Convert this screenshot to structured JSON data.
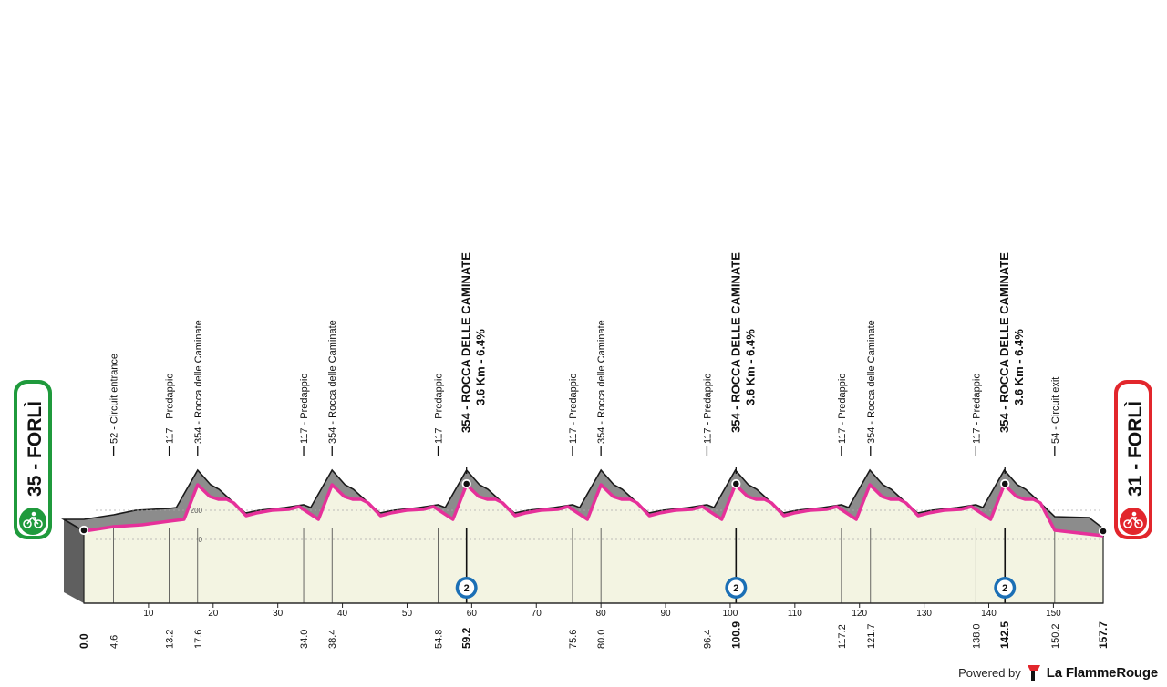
{
  "stage": {
    "start": {
      "altitude": "35",
      "name": "FORLÌ"
    },
    "finish": {
      "altitude": "31",
      "name": "FORLÌ"
    },
    "total_km": "157.7"
  },
  "altitude_scale": [
    "200",
    "0"
  ],
  "km_axis": [
    "10",
    "20",
    "30",
    "40",
    "50",
    "60",
    "70",
    "80",
    "90",
    "100",
    "110",
    "120",
    "130",
    "140",
    "150"
  ],
  "km_points": [
    {
      "km": 0.0,
      "label": "0.0",
      "major": true
    },
    {
      "km": 4.6,
      "label": "4.6"
    },
    {
      "km": 13.2,
      "label": "13.2"
    },
    {
      "km": 17.6,
      "label": "17.6"
    },
    {
      "km": 34.0,
      "label": "34.0"
    },
    {
      "km": 38.4,
      "label": "38.4"
    },
    {
      "km": 54.8,
      "label": "54.8"
    },
    {
      "km": 59.2,
      "label": "59.2",
      "major": true
    },
    {
      "km": 75.6,
      "label": "75.6"
    },
    {
      "km": 80.0,
      "label": "80.0"
    },
    {
      "km": 96.4,
      "label": "96.4"
    },
    {
      "km": 100.9,
      "label": "100.9",
      "major": true
    },
    {
      "km": 117.2,
      "label": "117.2"
    },
    {
      "km": 121.7,
      "label": "121.7"
    },
    {
      "km": 138.0,
      "label": "138.0"
    },
    {
      "km": 142.5,
      "label": "142.5",
      "major": true
    },
    {
      "km": 150.2,
      "label": "150.2"
    },
    {
      "km": 157.7,
      "label": "157.7",
      "major": true
    }
  ],
  "waypoints": [
    {
      "km": 4.6,
      "text": "52 - Circuit entrance"
    },
    {
      "km": 13.2,
      "text": "117 - Predappio"
    },
    {
      "km": 17.6,
      "text": "354 - Rocca delle Caminate"
    },
    {
      "km": 34.0,
      "text": "117 - Predappio"
    },
    {
      "km": 38.4,
      "text": "354 - Rocca delle Caminate"
    },
    {
      "km": 54.8,
      "text": "117 - Predappio"
    },
    {
      "km": 59.2,
      "text": "354 - ROCCA DELLE CAMINATE",
      "sub": "3.6 Km - 6.4%",
      "major": true
    },
    {
      "km": 75.6,
      "text": "117 - Predappio"
    },
    {
      "km": 80.0,
      "text": "354 - Rocca delle Caminate"
    },
    {
      "km": 96.4,
      "text": "117 - Predappio"
    },
    {
      "km": 100.9,
      "text": "354 - ROCCA DELLE CAMINATE",
      "sub": "3.6 Km - 6.4%",
      "major": true
    },
    {
      "km": 117.2,
      "text": "117 - Predappio"
    },
    {
      "km": 121.7,
      "text": "354 - Rocca delle Caminate"
    },
    {
      "km": 138.0,
      "text": "117 - Predappio"
    },
    {
      "km": 142.5,
      "text": "354 - ROCCA DELLE CAMINATE",
      "sub": "3.6 Km - 6.4%",
      "major": true
    },
    {
      "km": 150.2,
      "text": "54 - Circuit exit"
    }
  ],
  "climb_category": "2",
  "footer": {
    "powered_by": "Powered by",
    "brand": "La FlammeRouge"
  },
  "colors": {
    "route": "#e6309a",
    "terrain_fill": "#f3f4e2",
    "mountain": "#8a8a8a",
    "mountain_dark": "#555555",
    "start_green": "#1f9a3c",
    "finish_red": "#e2262c",
    "climb_badge": "#1b6fb5"
  },
  "icons": [
    "bicycle-icon",
    "flamme-rouge-logo-icon"
  ]
}
